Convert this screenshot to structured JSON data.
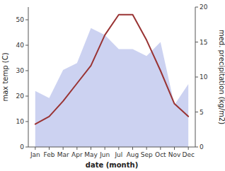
{
  "chart_data": {
    "type": "line",
    "categories": [
      "Jan",
      "Feb",
      "Mar",
      "Apr",
      "May",
      "Jun",
      "Jul",
      "Aug",
      "Sep",
      "Oct",
      "Nov",
      "Dec"
    ],
    "xlabel": "date (month)",
    "ylabel": "max temp (C)",
    "y2label": "med. precipitation (kg/m2)",
    "ylim": [
      0,
      55
    ],
    "yticks": [
      0,
      10,
      20,
      30,
      40,
      50
    ],
    "y2lim": [
      0,
      20
    ],
    "y2ticks": [
      0,
      5,
      10,
      15,
      20
    ],
    "series": [
      {
        "type": "area",
        "axis": "y2",
        "color": "#aab4e8",
        "values": [
          8,
          7,
          11,
          12,
          17,
          16,
          14,
          14,
          13,
          15,
          6,
          9
        ]
      },
      {
        "type": "line",
        "color": "#993333",
        "values": [
          9,
          12,
          18,
          25,
          32,
          44,
          52,
          52,
          42,
          30,
          17,
          12
        ]
      }
    ]
  }
}
